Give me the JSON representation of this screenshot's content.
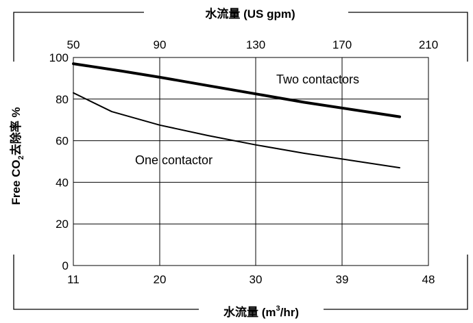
{
  "chart_data": {
    "type": "line",
    "title": "",
    "xlabel_bottom_prefix": "水流量 (m",
    "xlabel_bottom_sup": "3",
    "xlabel_bottom_suffix": "/hr)",
    "xlabel_top": "水流量 (US gpm)",
    "ylabel_prefix": "Free CO",
    "ylabel_sub": "2",
    "ylabel_suffix": "去除率 %",
    "xlim": [
      11,
      48
    ],
    "ylim": [
      0,
      100
    ],
    "x_ticks": [
      11,
      20,
      30,
      39,
      48
    ],
    "x_top_ticks": [
      50,
      90,
      130,
      170,
      210
    ],
    "y_ticks": [
      0,
      20,
      40,
      60,
      80,
      100
    ],
    "grid": true,
    "series": [
      {
        "name": "Two contactors",
        "stroke_width": "thick",
        "x": [
          11,
          16,
          20,
          25,
          30,
          35,
          40,
          45
        ],
        "y": [
          97,
          93.5,
          90.5,
          86.5,
          82.5,
          78.5,
          75,
          71.5
        ]
      },
      {
        "name": "One contactor",
        "stroke_width": "thin",
        "x": [
          11,
          15,
          20,
          25,
          30,
          35,
          40,
          45
        ],
        "y": [
          83,
          74,
          67.5,
          62.5,
          58,
          54,
          50.5,
          47
        ]
      }
    ]
  }
}
